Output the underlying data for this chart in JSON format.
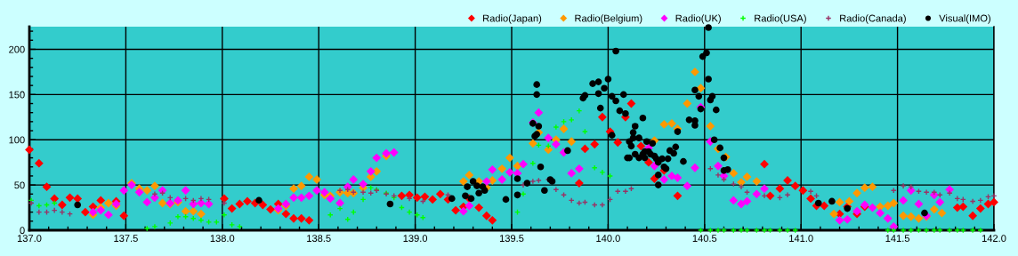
{
  "chart_data": {
    "type": "scatter",
    "xlim": [
      137.0,
      142.0
    ],
    "ylim": [
      0,
      225
    ],
    "xticks": [
      {
        "value": 137.0,
        "label": "137.0"
      },
      {
        "value": 137.1,
        "label": null
      },
      {
        "value": 137.2,
        "label": null
      },
      {
        "value": 137.3,
        "label": null
      },
      {
        "value": 137.4,
        "label": null
      },
      {
        "value": 137.5,
        "label": "137.5"
      },
      {
        "value": 137.6,
        "label": null
      },
      {
        "value": 137.7,
        "label": null
      },
      {
        "value": 137.8,
        "label": null
      },
      {
        "value": 137.9,
        "label": null
      },
      {
        "value": 138.0,
        "label": "138.0"
      },
      {
        "value": 138.1,
        "label": null
      },
      {
        "value": 138.2,
        "label": null
      },
      {
        "value": 138.3,
        "label": null
      },
      {
        "value": 138.4,
        "label": null
      },
      {
        "value": 138.5,
        "label": "138.5"
      },
      {
        "value": 138.6,
        "label": null
      },
      {
        "value": 138.7,
        "label": null
      },
      {
        "value": 138.8,
        "label": null
      },
      {
        "value": 138.9,
        "label": null
      },
      {
        "value": 139.0,
        "label": "139.0"
      },
      {
        "value": 139.1,
        "label": null
      },
      {
        "value": 139.2,
        "label": null
      },
      {
        "value": 139.3,
        "label": null
      },
      {
        "value": 139.4,
        "label": null
      },
      {
        "value": 139.5,
        "label": "139.5"
      },
      {
        "value": 139.6,
        "label": null
      },
      {
        "value": 139.7,
        "label": null
      },
      {
        "value": 139.8,
        "label": null
      },
      {
        "value": 139.9,
        "label": null
      },
      {
        "value": 140.0,
        "label": "140.0"
      },
      {
        "value": 140.1,
        "label": null
      },
      {
        "value": 140.2,
        "label": null
      },
      {
        "value": 140.3,
        "label": null
      },
      {
        "value": 140.4,
        "label": null
      },
      {
        "value": 140.5,
        "label": "140.5"
      },
      {
        "value": 140.6,
        "label": null
      },
      {
        "value": 140.7,
        "label": null
      },
      {
        "value": 140.8,
        "label": null
      },
      {
        "value": 140.9,
        "label": null
      },
      {
        "value": 141.0,
        "label": "141.0"
      },
      {
        "value": 141.1,
        "label": null
      },
      {
        "value": 141.2,
        "label": null
      },
      {
        "value": 141.3,
        "label": null
      },
      {
        "value": 141.4,
        "label": null
      },
      {
        "value": 141.5,
        "label": "141.5"
      },
      {
        "value": 141.6,
        "label": null
      },
      {
        "value": 141.7,
        "label": null
      },
      {
        "value": 141.8,
        "label": null
      },
      {
        "value": 141.9,
        "label": null
      },
      {
        "value": 142.0,
        "label": "142.0"
      }
    ],
    "yticks": [
      0,
      {
        "value": 10,
        "label": null
      },
      {
        "value": 20,
        "label": null
      },
      {
        "value": 30,
        "label": null
      },
      {
        "value": 40,
        "label": null
      },
      50,
      {
        "value": 60,
        "label": null
      },
      {
        "value": 70,
        "label": null
      },
      {
        "value": 80,
        "label": null
      },
      {
        "value": 90,
        "label": null
      },
      100,
      {
        "value": 110,
        "label": null
      },
      {
        "value": 120,
        "label": null
      },
      {
        "value": 130,
        "label": null
      },
      {
        "value": 140,
        "label": null
      },
      150,
      {
        "value": 160,
        "label": null
      },
      {
        "value": 170,
        "label": null
      },
      {
        "value": 180,
        "label": null
      },
      {
        "value": 190,
        "label": null
      },
      200,
      {
        "value": 210,
        "label": null
      },
      {
        "value": 220,
        "label": null
      }
    ],
    "grid": true,
    "legend": "top right",
    "series": [
      {
        "name": "Radio(Japan)",
        "color": "#ff0000",
        "marker": "diamond",
        "x": [
          137.0,
          137.05,
          137.09,
          137.13,
          137.17,
          137.21,
          137.25,
          137.29,
          137.33,
          137.37,
          137.45,
          137.49,
          138.01,
          138.05,
          138.09,
          138.13,
          138.17,
          138.21,
          138.25,
          138.29,
          138.33,
          138.37,
          138.41,
          138.45,
          138.93,
          138.97,
          139.01,
          139.05,
          139.09,
          139.13,
          139.17,
          139.21,
          139.25,
          139.28,
          139.33,
          139.37,
          139.4,
          139.85,
          139.88,
          139.93,
          139.97,
          140.01,
          140.05,
          140.09,
          140.12,
          140.17,
          140.21,
          140.24,
          140.29,
          140.36,
          140.81,
          140.84,
          140.89,
          140.93,
          140.97,
          141.01,
          141.05,
          141.08,
          141.12,
          141.2,
          141.24,
          141.29,
          141.33,
          141.81,
          141.84,
          141.89,
          141.93,
          141.97,
          142.0
        ],
        "values": [
          89,
          74,
          48,
          35,
          28,
          36,
          35,
          20,
          26,
          33,
          32,
          16,
          35,
          24,
          29,
          32,
          30,
          28,
          23,
          29,
          18,
          13,
          13,
          11,
          38,
          39,
          36,
          37,
          34,
          40,
          34,
          22,
          26,
          35,
          25,
          16,
          11,
          52,
          90,
          95,
          125,
          109,
          97,
          125,
          140,
          93,
          75,
          57,
          66,
          38,
          73,
          38,
          46,
          55,
          49,
          44,
          35,
          27,
          27,
          18,
          26,
          18,
          26,
          25,
          26,
          16,
          24,
          29,
          31
        ]
      },
      {
        "name": "Radio(Belgium)",
        "color": "#ff9900",
        "marker": "diamond",
        "x": [
          137.33,
          137.37,
          137.41,
          137.45,
          137.53,
          137.57,
          137.61,
          137.65,
          137.69,
          137.73,
          137.77,
          137.81,
          137.85,
          137.89,
          138.29,
          138.33,
          138.37,
          138.41,
          138.45,
          138.49,
          138.53,
          138.56,
          138.61,
          138.65,
          138.68,
          138.73,
          138.77,
          138.8,
          138.85,
          139.25,
          139.28,
          139.33,
          139.37,
          139.4,
          139.45,
          139.49,
          139.53,
          139.61,
          139.64,
          139.69,
          139.73,
          139.77,
          139.81,
          140.24,
          140.29,
          140.33,
          140.36,
          140.41,
          140.45,
          140.48,
          140.53,
          140.57,
          140.61,
          140.65,
          140.69,
          140.72,
          140.77,
          141.17,
          141.2,
          141.25,
          141.29,
          141.33,
          141.37,
          141.41,
          141.45,
          141.48,
          141.53,
          141.57,
          141.61,
          141.65,
          141.69,
          141.73
        ],
        "values": [
          17,
          25,
          30,
          27,
          52,
          46,
          44,
          49,
          30,
          29,
          31,
          21,
          21,
          18,
          22,
          27,
          46,
          49,
          59,
          56,
          39,
          38,
          42,
          41,
          41,
          47,
          59,
          65,
          82,
          54,
          61,
          54,
          47,
          55,
          68,
          80,
          71,
          96,
          108,
          89,
          100,
          112,
          98,
          99,
          117,
          118,
          112,
          140,
          175,
          157,
          115,
          90,
          81,
          63,
          53,
          59,
          54,
          18,
          31,
          32,
          41,
          47,
          48,
          26,
          27,
          30,
          16,
          15,
          13,
          15,
          23,
          19
        ]
      },
      {
        "name": "Radio(UK)",
        "color": "#ff00ff",
        "marker": "diamond",
        "x": [
          137.33,
          137.37,
          137.41,
          137.45,
          137.49,
          137.53,
          137.57,
          137.61,
          137.65,
          137.69,
          137.73,
          137.77,
          137.81,
          137.85,
          137.89,
          137.93,
          138.29,
          138.33,
          138.37,
          138.41,
          138.45,
          138.49,
          138.53,
          138.56,
          138.61,
          138.65,
          138.68,
          138.73,
          138.77,
          138.8,
          138.85,
          138.89,
          139.25,
          139.28,
          139.37,
          139.4,
          139.45,
          139.49,
          139.53,
          139.56,
          139.61,
          139.64,
          139.69,
          139.73,
          139.77,
          139.81,
          139.85,
          140.21,
          140.24,
          140.29,
          140.33,
          140.36,
          140.41,
          140.45,
          140.48,
          140.53,
          140.57,
          140.6,
          140.65,
          140.69,
          140.72,
          140.77,
          140.81,
          141.2,
          141.24,
          141.29,
          141.33,
          141.37,
          141.41,
          141.45,
          141.48,
          141.53,
          141.57,
          141.61,
          141.65,
          141.69,
          141.72,
          141.77
        ],
        "values": [
          20,
          22,
          17,
          29,
          44,
          50,
          42,
          31,
          36,
          44,
          30,
          33,
          44,
          29,
          30,
          29,
          24,
          29,
          36,
          36,
          38,
          44,
          42,
          35,
          30,
          48,
          56,
          51,
          65,
          80,
          85,
          86,
          21,
          27,
          54,
          67,
          56,
          64,
          63,
          73,
          119,
          130,
          102,
          95,
          86,
          63,
          68,
          91,
          71,
          56,
          60,
          58,
          49,
          69,
          136,
          98,
          71,
          60,
          33,
          29,
          32,
          40,
          46,
          11,
          12,
          21,
          28,
          25,
          19,
          13,
          4,
          33,
          44,
          29,
          16,
          39,
          31,
          45
        ]
      },
      {
        "name": "Radio(USA)",
        "color": "#00ff00",
        "marker": "cross",
        "x": [
          137.01,
          137.05,
          137.09,
          137.13,
          137.61,
          137.65,
          137.73,
          137.77,
          137.81,
          137.85,
          137.89,
          137.93,
          137.97,
          138.01,
          138.05,
          138.09,
          138.56,
          138.61,
          138.65,
          138.68,
          138.73,
          138.77,
          138.8,
          138.85,
          138.89,
          138.93,
          138.97,
          139.01,
          139.04,
          139.53,
          139.56,
          139.61,
          139.64,
          139.69,
          139.73,
          139.77,
          139.81,
          139.85,
          139.88,
          139.93,
          139.97,
          140.01,
          140.48,
          140.53,
          140.57,
          140.6,
          140.65,
          140.69,
          140.72,
          140.77,
          140.81,
          140.84,
          140.89,
          140.93,
          140.97,
          141.45,
          141.48,
          141.53,
          141.57,
          141.61,
          141.65,
          141.69,
          141.72,
          141.77,
          141.81,
          141.84,
          141.89,
          141.93
        ],
        "values": [
          33,
          27,
          28,
          30,
          2,
          4,
          8,
          15,
          15,
          13,
          11,
          9,
          9,
          17,
          6,
          4,
          17,
          24,
          12,
          20,
          34,
          47,
          45,
          41,
          36,
          25,
          20,
          17,
          14,
          20,
          40,
          74,
          94,
          93,
          114,
          120,
          122,
          132,
          109,
          69,
          64,
          60,
          0,
          0,
          0,
          0,
          0,
          0,
          0,
          0,
          0,
          0,
          0,
          0,
          0,
          0,
          0,
          0,
          0,
          0,
          0,
          0,
          0,
          0,
          0,
          0,
          0,
          0
        ]
      },
      {
        "name": "Radio(Canada)",
        "color": "#993366",
        "marker": "cross",
        "x": [
          137.01,
          137.05,
          137.09,
          137.13,
          137.17,
          137.21,
          137.65,
          137.69,
          137.73,
          137.81,
          137.85,
          137.89,
          137.93,
          138.01,
          138.61,
          138.65,
          138.68,
          138.73,
          138.77,
          138.8,
          138.85,
          138.89,
          138.97,
          139.04,
          139.17,
          139.56,
          139.61,
          139.64,
          139.69,
          139.73,
          139.77,
          139.81,
          139.85,
          139.88,
          139.93,
          139.97,
          140.01,
          140.05,
          140.09,
          140.12,
          140.53,
          140.57,
          140.6,
          140.65,
          140.69,
          140.72,
          140.81,
          140.89,
          140.93,
          141.05,
          141.08,
          141.48,
          141.53,
          141.57,
          141.61,
          141.65,
          141.69,
          141.72,
          141.77,
          141.81,
          141.84,
          141.89,
          141.93,
          141.97,
          142.0
        ],
        "values": [
          30,
          20,
          20,
          22,
          20,
          18,
          40,
          41,
          36,
          35,
          33,
          35,
          34,
          30,
          44,
          45,
          42,
          42,
          41,
          44,
          40,
          38,
          35,
          32,
          39,
          50,
          54,
          55,
          56,
          45,
          39,
          33,
          30,
          31,
          28,
          28,
          34,
          43,
          43,
          46,
          68,
          61,
          56,
          51,
          48,
          42,
          38,
          36,
          39,
          43,
          38,
          44,
          49,
          48,
          43,
          42,
          42,
          39,
          41,
          35,
          34,
          32,
          33,
          37,
          38
        ]
      },
      {
        "name": "Visual(IMO)",
        "color": "#000000",
        "marker": "circle",
        "x": [
          137.25,
          138.19,
          138.87,
          139.19,
          139.26,
          139.29,
          139.27,
          139.3,
          139.32,
          139.35,
          139.36,
          139.33,
          139.47,
          139.53,
          139.53,
          139.58,
          139.61,
          139.62,
          139.63,
          139.63,
          139.63,
          139.64,
          139.65,
          139.67,
          139.7,
          139.71,
          139.79,
          139.87,
          139.88,
          139.92,
          139.95,
          139.95,
          139.96,
          139.98,
          140.0,
          140.02,
          140.02,
          140.04,
          140.04,
          140.06,
          140.08,
          140.09,
          140.1,
          140.18,
          140.14,
          140.13,
          140.13,
          140.11,
          140.16,
          140.12,
          140.2,
          140.23,
          140.11,
          140.14,
          140.16,
          140.18,
          140.19,
          140.19,
          140.21,
          140.22,
          140.24,
          140.25,
          140.28,
          140.31,
          140.26,
          140.29,
          140.3,
          140.26,
          140.26,
          140.32,
          140.34,
          140.35,
          140.36,
          140.39,
          140.42,
          140.45,
          140.45,
          140.45,
          140.47,
          140.48,
          140.49,
          140.51,
          140.52,
          140.52,
          140.53,
          140.54,
          140.56,
          140.55,
          140.58,
          140.6,
          140.6,
          140.62,
          141.09,
          141.16,
          141.24,
          141.64
        ],
        "values": [
          28,
          33,
          29,
          35,
          38,
          35,
          48,
          54,
          49,
          48,
          44,
          41,
          34,
          39,
          57,
          52,
          118,
          104,
          106,
          150,
          161,
          115,
          70,
          44,
          56,
          54,
          88,
          146,
          149,
          162,
          164,
          151,
          135,
          157,
          167,
          148,
          105,
          198,
          143,
          132,
          150,
          129,
          80,
          124,
          115,
          108,
          102,
          98,
          102,
          93,
          98,
          96,
          80,
          84,
          80,
          84,
          80,
          87,
          87,
          84,
          82,
          79,
          79,
          79,
          75,
          70,
          68,
          61,
          50,
          88,
          85,
          92,
          109,
          76,
          122,
          155,
          121,
          116,
          148,
          134,
          192,
          196,
          224,
          167,
          144,
          148,
          133,
          100,
          91,
          80,
          66,
          67,
          30,
          32,
          24,
          19
        ]
      }
    ]
  }
}
